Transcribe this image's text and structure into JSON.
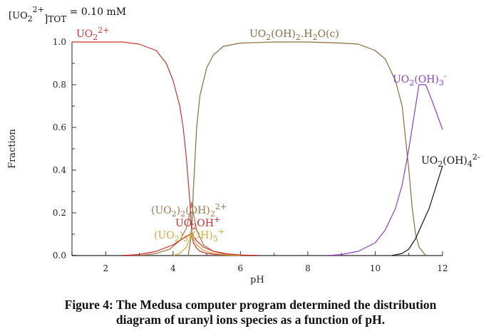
{
  "caption": {
    "line1": "Figure 4: The Medusa computer program determined the distribution",
    "line2": "diagram of uranyl ions species as a function of pH."
  },
  "chart_data": {
    "type": "line",
    "title": "",
    "annotation": {
      "prefix": "[UO",
      "sub": "2",
      "sup": "2+",
      "suffix": "]",
      "tot": "TOT",
      "eq": "=",
      "value": "0.10 mM"
    },
    "xlabel": "pH",
    "ylabel": "Fraction",
    "xlim": [
      1,
      12
    ],
    "ylim": [
      0,
      1
    ],
    "xticks": [
      2,
      4,
      6,
      8,
      10,
      12
    ],
    "xminor": [
      1,
      3,
      5,
      7,
      9,
      11
    ],
    "yticks": [
      0.0,
      0.2,
      0.4,
      0.6,
      0.8,
      1.0
    ],
    "ytick_labels": [
      "0.0",
      "0.2",
      "0.4",
      "0.6",
      "0.8",
      "1.0"
    ],
    "yminor": [
      0.1,
      0.3,
      0.5,
      0.7,
      0.9
    ],
    "grid": false,
    "legend": "inline labels",
    "series": [
      {
        "name": "UO2 2+",
        "label_parts": [
          [
            "UO",
            ""
          ],
          [
            "2",
            "sub"
          ],
          [
            "2+",
            "sup"
          ]
        ],
        "color": "#d0302f",
        "x": [
          1.0,
          2.5,
          3.0,
          3.5,
          3.8,
          4.0,
          4.2,
          4.3,
          4.4,
          4.5,
          4.55,
          4.6,
          4.7,
          4.8,
          5.0,
          5.3,
          5.6,
          6.0
        ],
        "y": [
          1.0,
          1.0,
          0.99,
          0.96,
          0.9,
          0.82,
          0.7,
          0.6,
          0.45,
          0.25,
          0.12,
          0.06,
          0.035,
          0.02,
          0.01,
          0.005,
          0.002,
          0.0
        ]
      },
      {
        "name": "UO2(OH)2.H2O(c)",
        "label_parts": [
          [
            "UO",
            ""
          ],
          [
            "2",
            "sub"
          ],
          [
            "(OH)",
            ""
          ],
          [
            "2",
            "sub"
          ],
          [
            ".H",
            ""
          ],
          [
            "2",
            "sub"
          ],
          [
            "O(c)",
            ""
          ]
        ],
        "color": "#8b6a3e",
        "x": [
          4.45,
          4.55,
          4.6,
          4.7,
          4.8,
          5.0,
          5.2,
          5.5,
          6.0,
          7.0,
          8.0,
          9.0,
          9.5,
          10.0,
          10.3,
          10.6,
          10.8,
          11.0,
          11.1,
          11.2,
          11.3,
          11.5
        ],
        "y": [
          0.0,
          0.1,
          0.3,
          0.6,
          0.75,
          0.88,
          0.94,
          0.98,
          0.995,
          1.0,
          1.0,
          0.995,
          0.99,
          0.96,
          0.92,
          0.82,
          0.7,
          0.4,
          0.22,
          0.1,
          0.04,
          0.0
        ]
      },
      {
        "name": "UO2(OH)3-",
        "label_parts": [
          [
            "UO",
            ""
          ],
          [
            "2",
            "sub"
          ],
          [
            "(OH)",
            ""
          ],
          [
            "3",
            "sub"
          ],
          [
            "-",
            "sup"
          ]
        ],
        "color": "#8a3fc9",
        "x": [
          8.6,
          9.0,
          9.5,
          10.0,
          10.3,
          10.6,
          10.8,
          11.0,
          11.2,
          11.3,
          11.4,
          11.5,
          11.7,
          12.0
        ],
        "y": [
          0.0,
          0.005,
          0.02,
          0.06,
          0.12,
          0.22,
          0.33,
          0.5,
          0.7,
          0.8,
          0.8,
          0.8,
          0.72,
          0.59
        ]
      },
      {
        "name": "UO2(OH)4 2-",
        "label_parts": [
          [
            "UO",
            ""
          ],
          [
            "2",
            "sub"
          ],
          [
            "(OH)",
            ""
          ],
          [
            "4",
            "sub"
          ],
          [
            "2-",
            "sup"
          ]
        ],
        "color": "#111111",
        "x": [
          10.5,
          10.8,
          11.0,
          11.2,
          11.4,
          11.6,
          11.8,
          12.0
        ],
        "y": [
          0.0,
          0.01,
          0.03,
          0.08,
          0.15,
          0.22,
          0.32,
          0.42
        ]
      },
      {
        "name": "(UO2)2(OH)2 2+",
        "label_parts": [
          [
            "(UO",
            ""
          ],
          [
            "2",
            "sub"
          ],
          [
            ")",
            ""
          ],
          [
            "2",
            "sub"
          ],
          [
            "(OH)",
            ""
          ],
          [
            "2",
            "sub"
          ],
          [
            "2+",
            "sup"
          ]
        ],
        "color": "#a0784c",
        "x": [
          3.0,
          3.5,
          3.9,
          4.2,
          4.4,
          4.5,
          4.55,
          4.6,
          4.7,
          4.9,
          5.2,
          5.6,
          6.0
        ],
        "y": [
          0.0,
          0.01,
          0.03,
          0.07,
          0.13,
          0.2,
          0.25,
          0.2,
          0.12,
          0.05,
          0.02,
          0.005,
          0.0
        ]
      },
      {
        "name": "UO2OH+",
        "label_parts": [
          [
            "UO",
            ""
          ],
          [
            "2",
            "sub"
          ],
          [
            "OH",
            ""
          ],
          [
            "+",
            "sup"
          ]
        ],
        "color": "#d8252a",
        "x": [
          2.5,
          3.0,
          3.5,
          4.0,
          4.3,
          4.5,
          4.6,
          4.7,
          4.9,
          5.2,
          5.6,
          6.0,
          6.5
        ],
        "y": [
          0.0,
          0.005,
          0.02,
          0.05,
          0.08,
          0.1,
          0.09,
          0.07,
          0.04,
          0.02,
          0.008,
          0.003,
          0.0
        ]
      },
      {
        "name": "(UO2)3(OH)5+",
        "label_parts": [
          [
            "(UO",
            ""
          ],
          [
            "2",
            "sub"
          ],
          [
            ")",
            ""
          ],
          [
            "3",
            "sub"
          ],
          [
            "(OH)",
            ""
          ],
          [
            "5",
            "sub"
          ],
          [
            "+",
            "sup"
          ]
        ],
        "color": "#d4a832",
        "x": [
          4.0,
          4.2,
          4.4,
          4.5,
          4.55,
          4.6,
          4.7,
          4.9,
          5.2,
          5.6,
          6.0
        ],
        "y": [
          0.0,
          0.01,
          0.04,
          0.08,
          0.1,
          0.08,
          0.05,
          0.025,
          0.01,
          0.003,
          0.0
        ]
      }
    ]
  }
}
